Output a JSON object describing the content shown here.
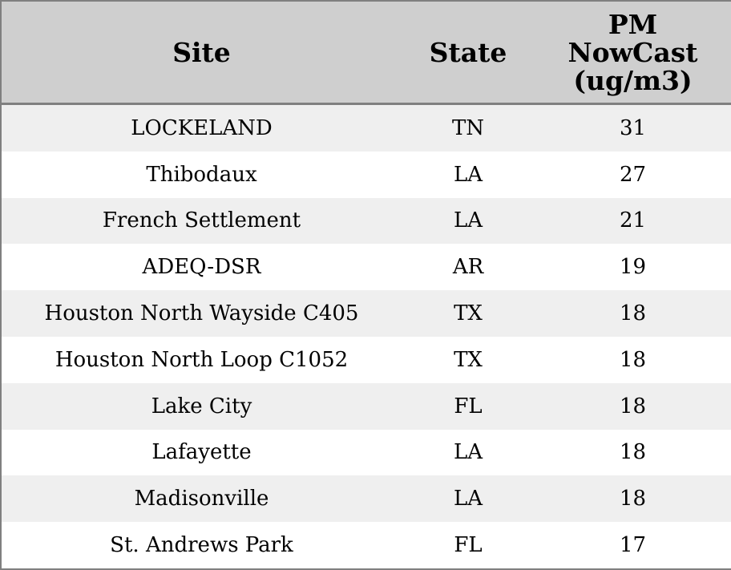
{
  "table": {
    "columns": [
      "Site",
      "State",
      "PM NowCast (ug/m3)"
    ],
    "rows": [
      [
        "LOCKELAND",
        "TN",
        31
      ],
      [
        "Thibodaux",
        "LA",
        27
      ],
      [
        "French Settlement",
        "LA",
        21
      ],
      [
        "ADEQ-DSR",
        "AR",
        19
      ],
      [
        "Houston North Wayside C405",
        "TX",
        18
      ],
      [
        "Houston North Loop C1052",
        "TX",
        18
      ],
      [
        "Lake City",
        "FL",
        18
      ],
      [
        "Lafayette",
        "LA",
        18
      ],
      [
        "Madisonville",
        "LA",
        18
      ],
      [
        "St. Andrews Park",
        "FL",
        17
      ]
    ]
  }
}
